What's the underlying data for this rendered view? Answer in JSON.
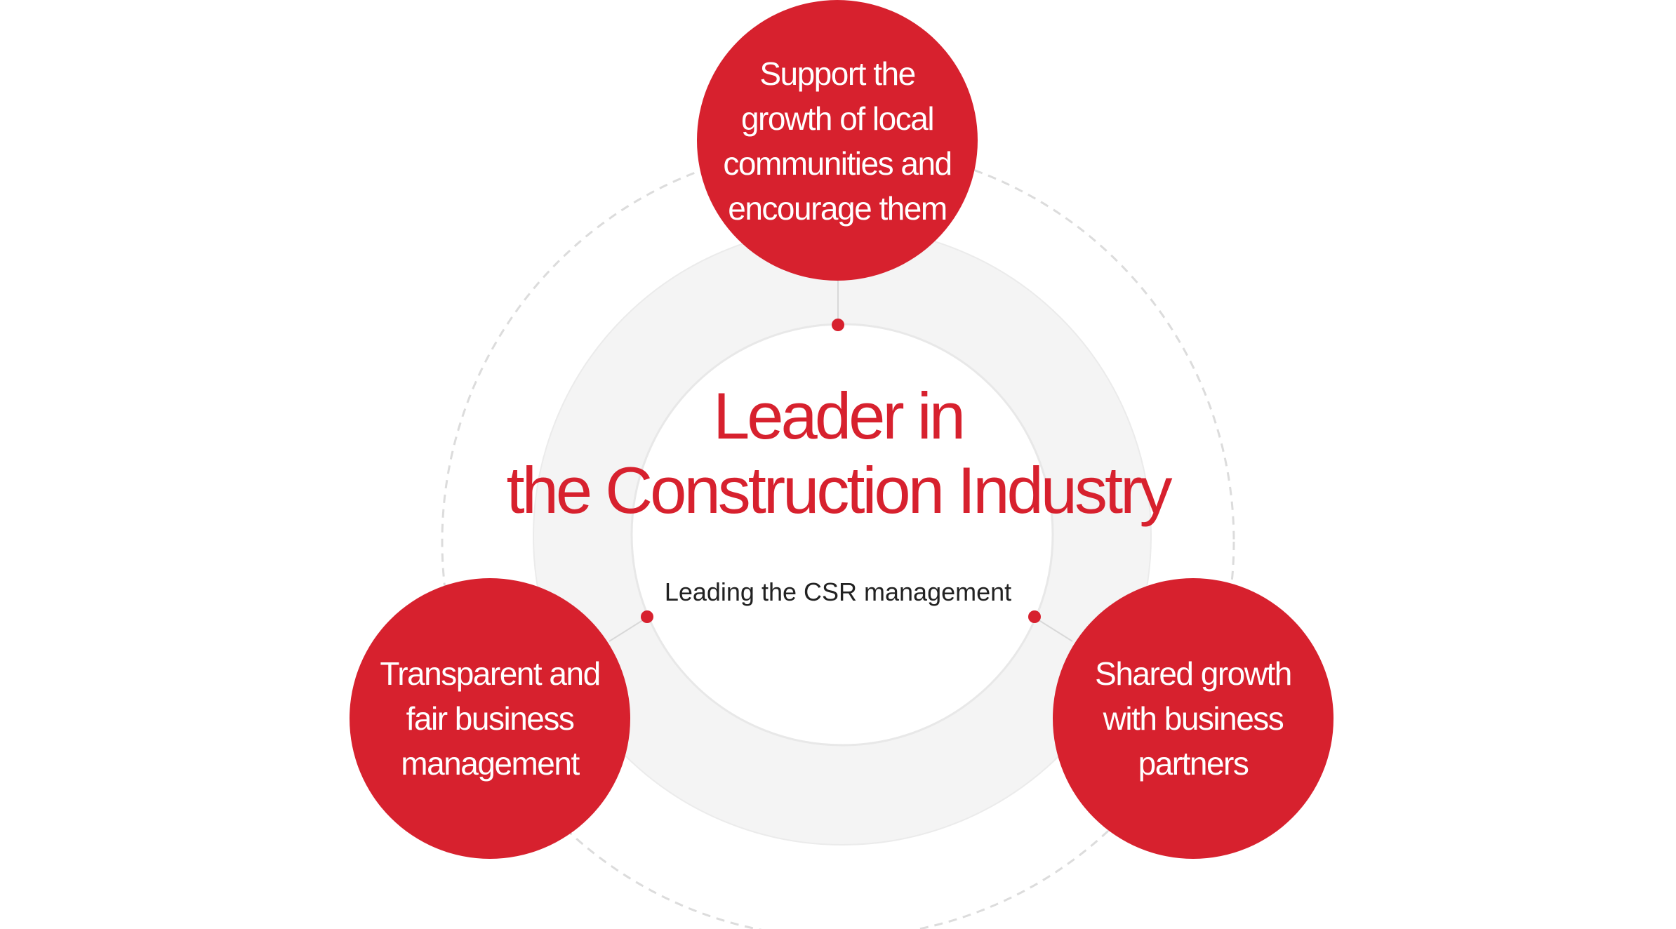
{
  "center": {
    "title_line1": "Leader in",
    "title_line2": "the Construction Industry",
    "subtitle": "Leading the CSR management"
  },
  "bubbles": {
    "top": [
      "Support the",
      "growth of local",
      "communities and",
      "encourage them"
    ],
    "left": [
      "Transparent and",
      "fair business",
      "management"
    ],
    "right": [
      "Shared growth",
      "with business",
      "partners"
    ]
  },
  "colors": {
    "accent": "#d7212e",
    "ring": "#f4f4f4",
    "dashed_ring": "#dcdcdc",
    "subtitle_text": "#222222"
  }
}
